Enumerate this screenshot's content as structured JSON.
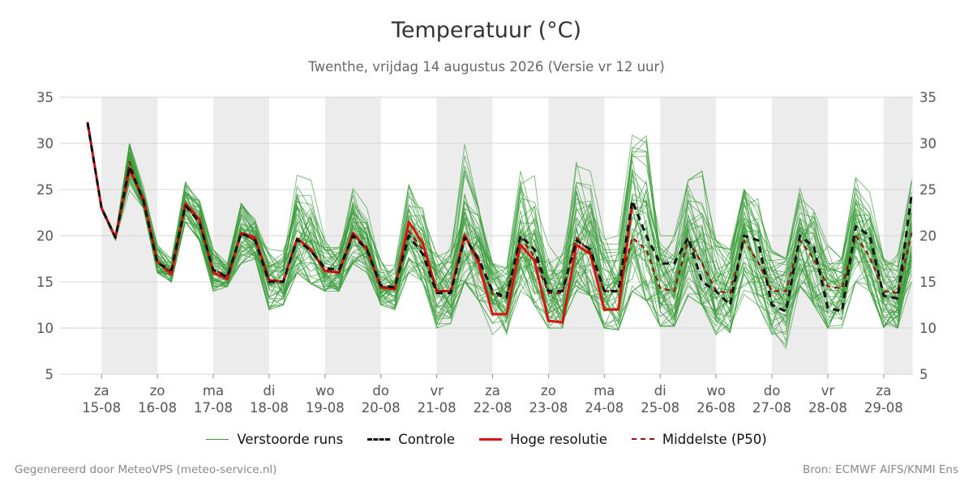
{
  "header": {
    "title": "Temperatuur (°C)",
    "subtitle": "Twenthe, vrijdag 14 augustus 2026 (Versie vr 12 uur)"
  },
  "legend": {
    "items": [
      {
        "key": "runs",
        "label": "Verstoorde runs",
        "color": "#3a9d3a",
        "style": "thin"
      },
      {
        "key": "controle",
        "label": "Controle",
        "color": "#111111",
        "style": "dashed"
      },
      {
        "key": "hires",
        "label": "Hoge resolutie",
        "color": "#dd1111",
        "style": "solid"
      },
      {
        "key": "p50",
        "label": "Middelste (P50)",
        "color": "#991111",
        "style": "dashed"
      }
    ]
  },
  "footer": {
    "left": "Gegenereerd door MeteoVPS (meteo-service.nl)",
    "right": "Bron: ECMWF AIFS/KNMI Ens"
  },
  "colors": {
    "runs": "#3a9d3a",
    "controle": "#111111",
    "hires": "#dd1111",
    "p50": "#991111",
    "band": "#ececec",
    "grid": "#d6d6d6"
  },
  "chart_data": {
    "type": "line",
    "title": "Temperatuur (°C)",
    "subtitle": "Twenthe, vrijdag 14 augustus 2026 (Versie vr 12 uur)",
    "x_unit": "days since 14-08 12:00 (6-hourly steps)",
    "step_hours": 6,
    "ylim": [
      5,
      35
    ],
    "yticks": [
      5,
      10,
      15,
      20,
      25,
      30,
      35
    ],
    "grid": true,
    "y_axis_both_sides": true,
    "legend_position": "bottom",
    "x_ticks": [
      {
        "day": "za",
        "date": "15-08"
      },
      {
        "day": "zo",
        "date": "16-08"
      },
      {
        "day": "ma",
        "date": "17-08"
      },
      {
        "day": "di",
        "date": "18-08"
      },
      {
        "day": "wo",
        "date": "19-08"
      },
      {
        "day": "do",
        "date": "20-08"
      },
      {
        "day": "vr",
        "date": "21-08"
      },
      {
        "day": "za",
        "date": "22-08"
      },
      {
        "day": "zo",
        "date": "23-08"
      },
      {
        "day": "ma",
        "date": "24-08"
      },
      {
        "day": "di",
        "date": "25-08"
      },
      {
        "day": "wo",
        "date": "26-08"
      },
      {
        "day": "do",
        "date": "27-08"
      },
      {
        "day": "vr",
        "date": "28-08"
      },
      {
        "day": "za",
        "date": "29-08"
      }
    ],
    "weekend_bands": [
      [
        0.25,
        1.25
      ],
      [
        2.25,
        3.25
      ],
      [
        4.25,
        5.25
      ],
      [
        6.25,
        7.25
      ],
      [
        8.25,
        9.25
      ],
      [
        10.25,
        11.25
      ],
      [
        12.25,
        13.25
      ],
      [
        14.25,
        14.77
      ]
    ],
    "series": [
      {
        "name": "Hoge resolutie",
        "color": "#dd1111",
        "values": [
          32.3,
          23.0,
          19.8,
          27.2,
          24.0,
          17.2,
          15.8,
          23.5,
          21.8,
          16.0,
          15.3,
          20.3,
          19.8,
          15.2,
          15.0,
          19.7,
          18.5,
          16.2,
          16.0,
          20.3,
          18.5,
          14.4,
          14.2,
          21.5,
          19.2,
          14.0,
          14.0,
          20.1,
          17.0,
          11.5,
          11.5,
          19.0,
          17.3,
          10.8,
          10.6,
          19.0,
          18.0,
          12.0,
          12.0,
          23.5
        ]
      },
      {
        "name": "Controle",
        "color": "#111111",
        "values": [
          32.2,
          23.0,
          19.8,
          27.5,
          23.8,
          17.0,
          16.3,
          23.3,
          21.5,
          16.3,
          15.5,
          20.3,
          19.5,
          15.0,
          15.0,
          19.6,
          18.3,
          16.5,
          16.3,
          20.0,
          18.5,
          14.6,
          14.4,
          20.0,
          18.0,
          13.8,
          13.8,
          19.8,
          17.5,
          14.0,
          13.3,
          20.0,
          18.5,
          14.0,
          14.0,
          19.5,
          18.5,
          14.0,
          14.0,
          23.8,
          20.0,
          17.0,
          17.0,
          19.8,
          15.0,
          14.0,
          12.5,
          20.0,
          19.5,
          12.5,
          11.8,
          20.0,
          18.8,
          12.2,
          11.8,
          21.0,
          20.0,
          13.5,
          13.2,
          24.5
        ]
      },
      {
        "name": "Middelste (P50)",
        "color": "#991111",
        "values": [
          32.3,
          23.0,
          19.8,
          28.0,
          23.5,
          17.2,
          16.0,
          23.3,
          21.5,
          16.3,
          15.7,
          20.2,
          19.5,
          15.2,
          15.0,
          19.6,
          18.3,
          16.3,
          16.0,
          20.2,
          18.7,
          14.5,
          14.3,
          20.5,
          18.5,
          14.0,
          14.0,
          19.8,
          17.5,
          13.7,
          13.2,
          19.8,
          17.7,
          13.8,
          13.8,
          19.8,
          18.2,
          14.0,
          14.0,
          19.8,
          18.5,
          14.3,
          14.0,
          19.5,
          17.0,
          14.0,
          13.8,
          19.5,
          17.2,
          14.0,
          14.0,
          19.5,
          17.5,
          14.5,
          14.3,
          20.0,
          17.7,
          14.0,
          13.8,
          20.3
        ]
      }
    ],
    "ensemble": {
      "name": "Verstoorde runs",
      "count": 50,
      "color": "#3a9d3a",
      "band_min": [
        32.0,
        21.5,
        19.0,
        24.0,
        23.0,
        16.0,
        15.0,
        21.5,
        19.5,
        14.0,
        14.5,
        17.0,
        17.5,
        12.0,
        12.5,
        16.0,
        14.8,
        14.0,
        14.0,
        17.0,
        16.0,
        12.5,
        12.0,
        16.0,
        15.0,
        10.0,
        10.5,
        15.0,
        13.0,
        9.3,
        8.8,
        14.0,
        12.5,
        10.0,
        10.0,
        14.0,
        13.5,
        10.0,
        9.8,
        14.0,
        13.0,
        10.2,
        10.2,
        13.5,
        12.5,
        9.3,
        9.5,
        13.0,
        12.5,
        9.3,
        7.8,
        14.5,
        12.5,
        10.0,
        10.0,
        15.0,
        14.0,
        9.8,
        10.0,
        15.0
      ],
      "band_max": [
        32.8,
        23.5,
        20.0,
        30.0,
        26.0,
        19.0,
        17.5,
        26.0,
        24.0,
        18.5,
        17.0,
        23.5,
        22.0,
        19.0,
        19.0,
        27.0,
        26.0,
        19.5,
        19.5,
        25.5,
        23.0,
        17.5,
        17.0,
        25.5,
        23.0,
        18.0,
        19.0,
        30.0,
        23.0,
        17.0,
        16.5,
        27.0,
        26.5,
        19.0,
        19.0,
        28.0,
        27.0,
        20.0,
        20.0,
        32.5,
        32.5,
        20.0,
        20.5,
        26.0,
        27.0,
        19.5,
        18.5,
        25.0,
        24.0,
        18.5,
        17.5,
        25.8,
        24.5,
        19.0,
        17.5,
        26.3,
        25.5,
        17.5,
        18.0,
        26.0
      ]
    }
  }
}
